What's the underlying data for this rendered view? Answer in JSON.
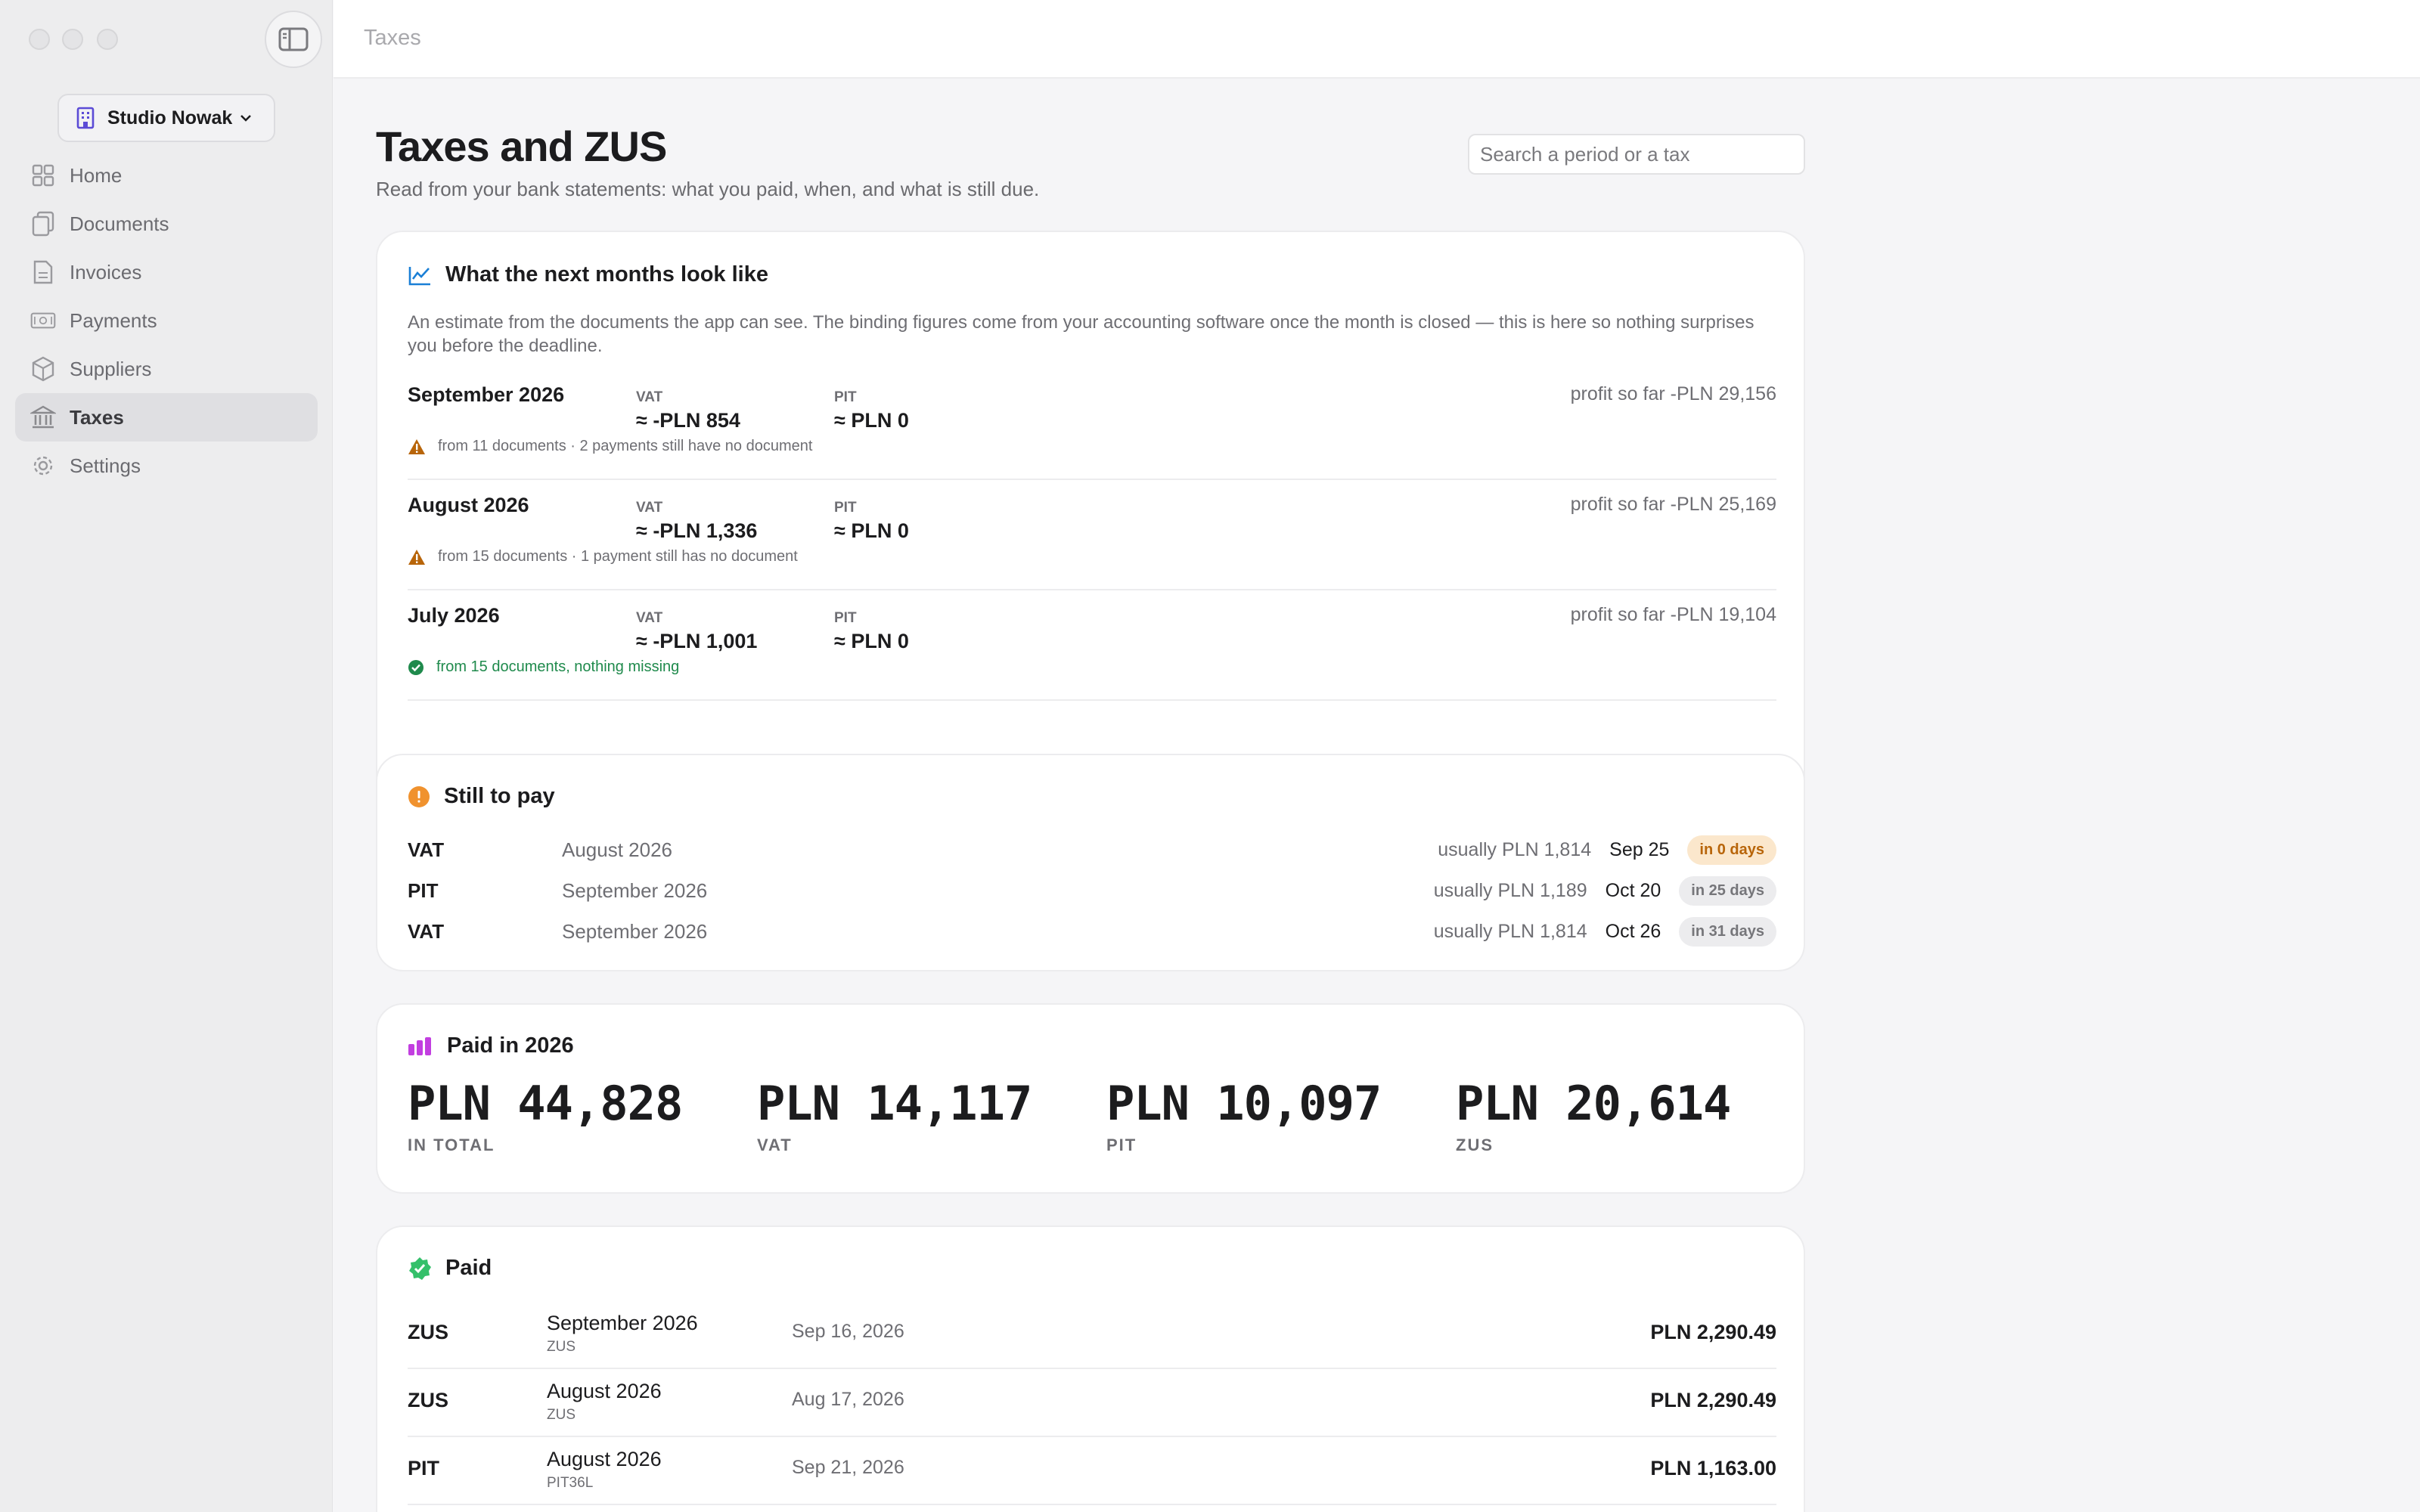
{
  "window": {
    "title": "Taxes"
  },
  "sidebar": {
    "org_name": "Studio Nowak",
    "items": [
      {
        "label": "Home",
        "icon": "grid-icon"
      },
      {
        "label": "Documents",
        "icon": "documents-icon"
      },
      {
        "label": "Invoices",
        "icon": "invoice-icon"
      },
      {
        "label": "Payments",
        "icon": "payments-icon"
      },
      {
        "label": "Suppliers",
        "icon": "box-icon"
      },
      {
        "label": "Taxes",
        "icon": "bank-icon",
        "active": true
      },
      {
        "label": "Settings",
        "icon": "gear-icon"
      }
    ]
  },
  "page": {
    "title": "Taxes and ZUS",
    "subtitle": "Read from your bank statements: what you paid, when, and what is still due.",
    "search_placeholder": "Search a period or a tax"
  },
  "forecast": {
    "title": "What the next months look like",
    "intro": "An estimate from the documents the app can see. The binding figures come from your accounting software once the month is closed — this is here so nothing surprises you before the deadline.",
    "vat_label": "VAT",
    "pit_label": "PIT",
    "rows": [
      {
        "month": "September 2026",
        "vat": "≈ -PLN 854",
        "pit": "≈ PLN 0",
        "profit": "profit so far -PLN 29,156",
        "note": "from 11 documents · 2 payments still have no document",
        "status": "warning"
      },
      {
        "month": "August 2026",
        "vat": "≈ -PLN 1,336",
        "pit": "≈ PLN 0",
        "profit": "profit so far -PLN 25,169",
        "note": "from 15 documents · 1 payment still has no document",
        "status": "warning"
      },
      {
        "month": "July 2026",
        "vat": "≈ -PLN 1,001",
        "pit": "≈ PLN 0",
        "profit": "profit so far -PLN 19,104",
        "note": "from 15 documents, nothing missing",
        "status": "ok"
      }
    ]
  },
  "still_to_pay": {
    "title": "Still to pay",
    "rows": [
      {
        "type": "VAT",
        "period": "August 2026",
        "usual": "usually PLN 1,814",
        "date": "Sep 25",
        "badge": "in 0 days",
        "urgent": true
      },
      {
        "type": "PIT",
        "period": "September 2026",
        "usual": "usually PLN 1,189",
        "date": "Oct 20",
        "badge": "in 25 days",
        "urgent": false
      },
      {
        "type": "VAT",
        "period": "September 2026",
        "usual": "usually PLN 1,814",
        "date": "Oct 26",
        "badge": "in 31 days",
        "urgent": false
      }
    ]
  },
  "paid_year": {
    "title": "Paid in 2026",
    "stats": [
      {
        "amount": "PLN 44,828",
        "caption": "IN TOTAL"
      },
      {
        "amount": "PLN 14,117",
        "caption": "VAT"
      },
      {
        "amount": "PLN 10,097",
        "caption": "PIT"
      },
      {
        "amount": "PLN 20,614",
        "caption": "ZUS"
      }
    ]
  },
  "paid": {
    "title": "Paid",
    "rows": [
      {
        "type": "ZUS",
        "period": "September 2026",
        "sub": "ZUS",
        "date": "Sep 16, 2026",
        "amount": "PLN 2,290.49"
      },
      {
        "type": "ZUS",
        "period": "August 2026",
        "sub": "ZUS",
        "date": "Aug 17, 2026",
        "amount": "PLN 2,290.49"
      },
      {
        "type": "PIT",
        "period": "August 2026",
        "sub": "PIT36L",
        "date": "Sep 21, 2026",
        "amount": "PLN 1,163.00"
      }
    ]
  },
  "colors": {
    "accent_blue": "#1a7fd6",
    "warning": "#b8650a",
    "ok": "#1f8a4c",
    "orange": "#f0922e",
    "purple": "#c23ee0",
    "green": "#34c06a"
  }
}
